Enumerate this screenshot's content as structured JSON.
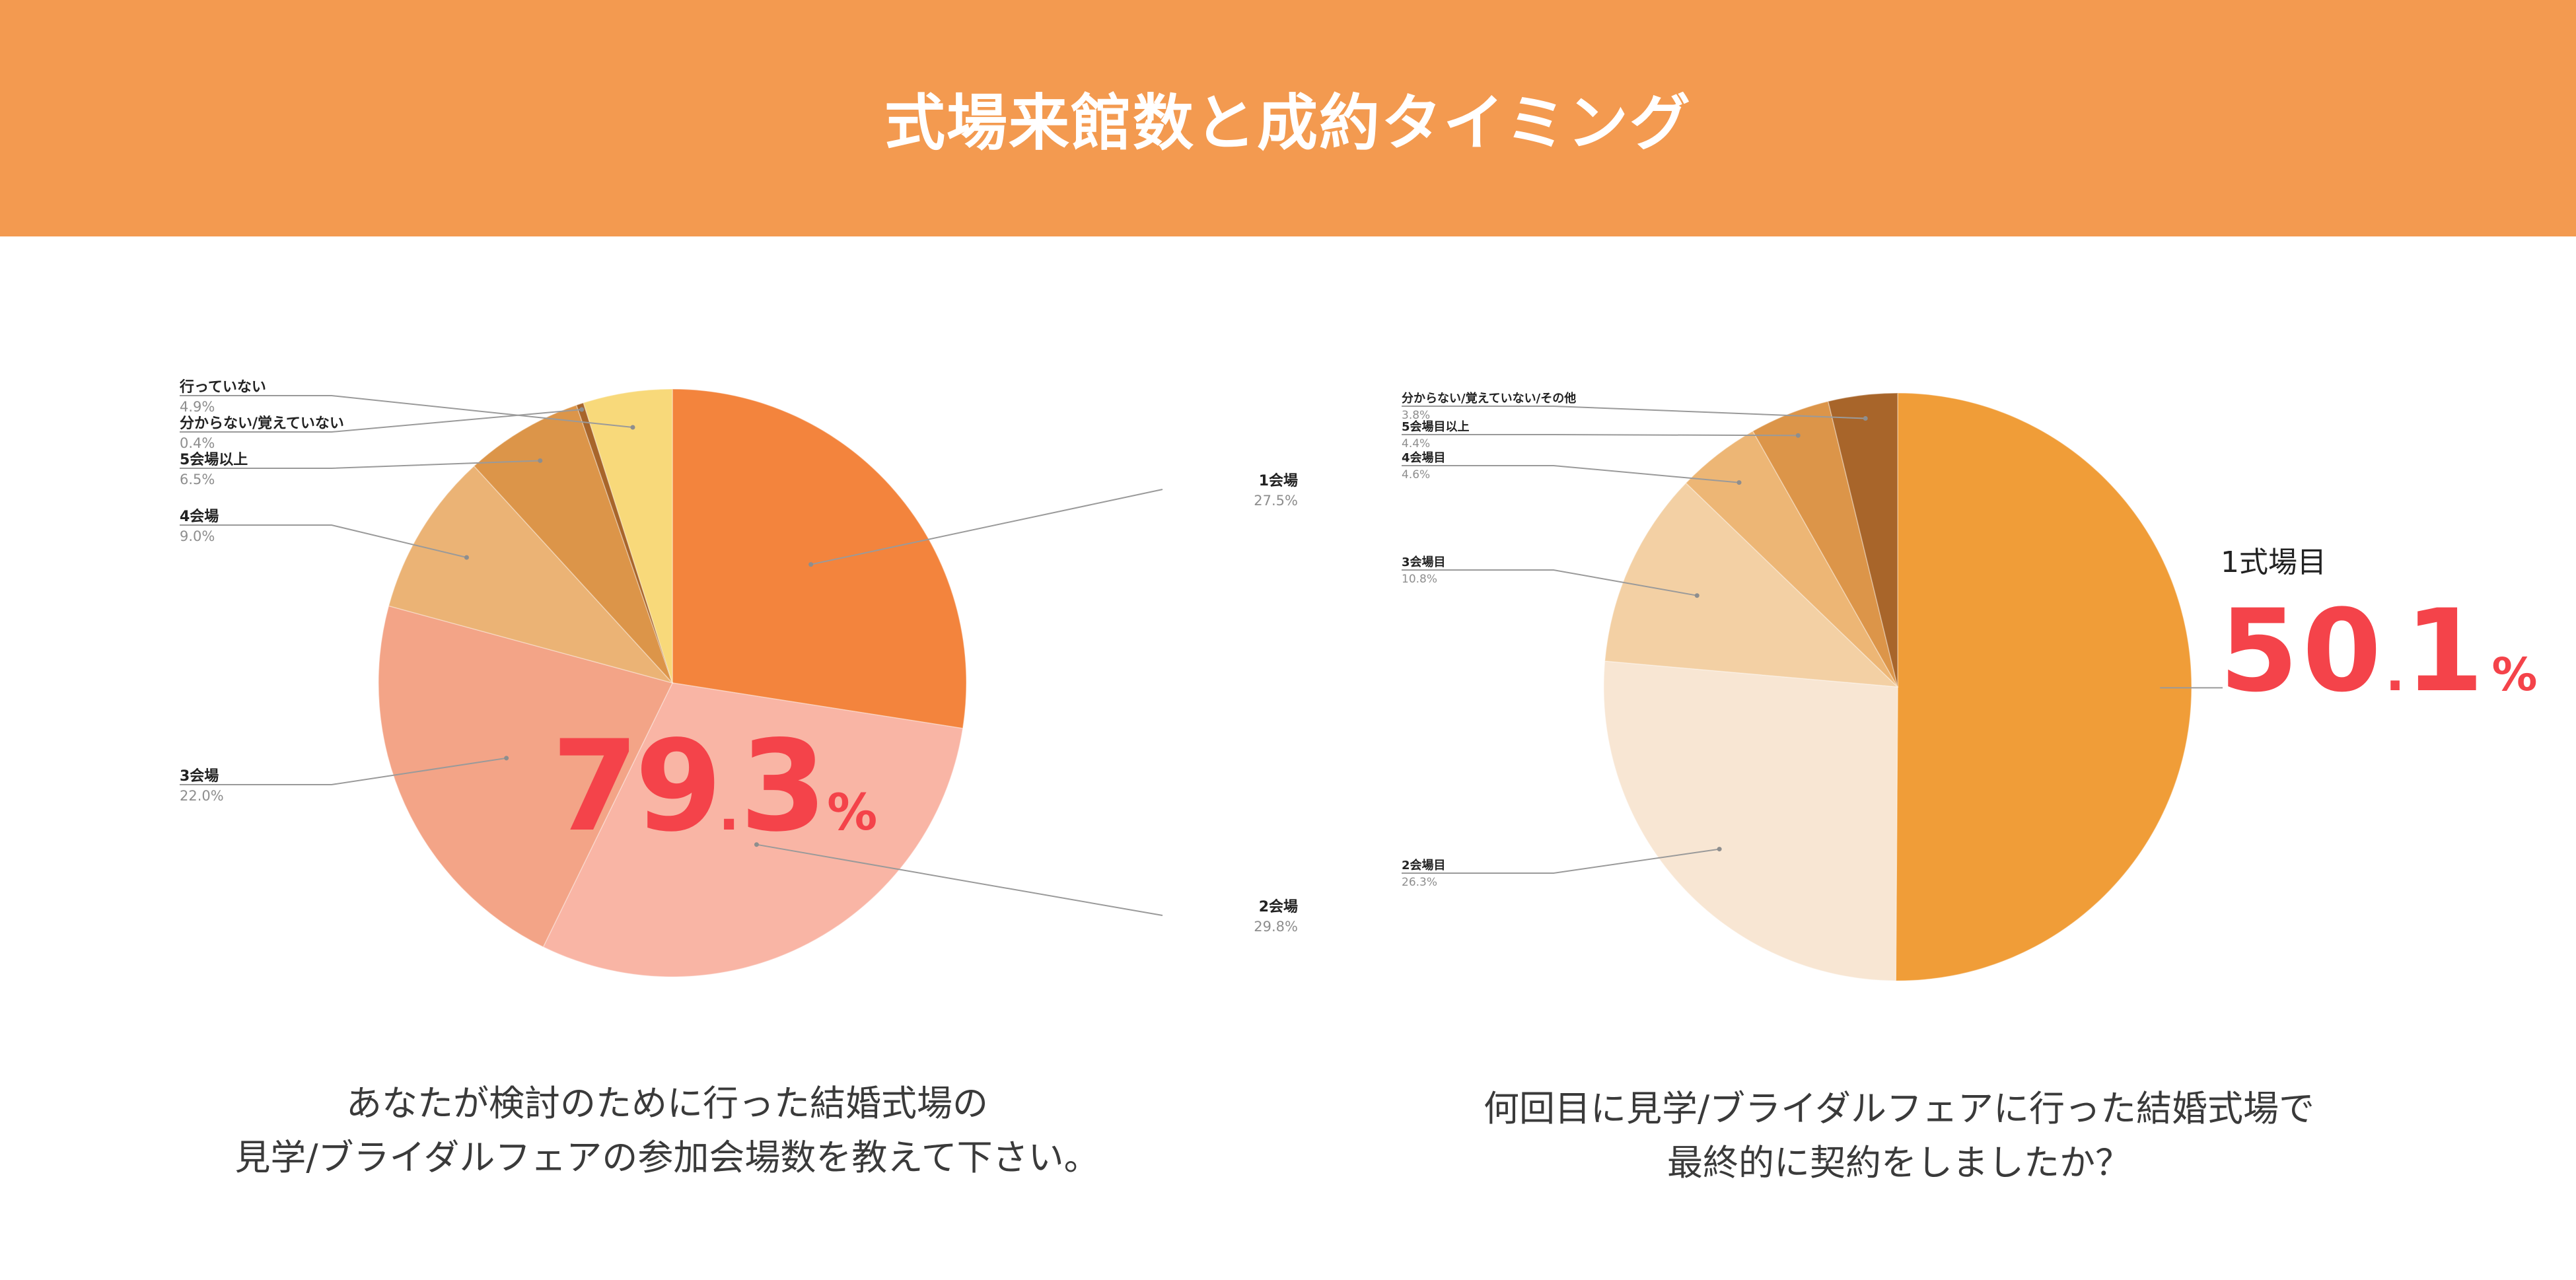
{
  "header": {
    "title": "式場来館数と成約タイミング"
  },
  "colors": {
    "header_bg": "#F39A50",
    "highlight": "#F4434A"
  },
  "left": {
    "big_number": {
      "int": "79",
      "dot": ".",
      "dec": "3",
      "unit": "%"
    },
    "question_lines": "あなたが検討のために行った結婚式場の\n見学/ブライダルフェアの参加会場数を教えて下さい。"
  },
  "right": {
    "highlight_label": "1式場目",
    "big_number": {
      "int": "50",
      "dot": ".",
      "dec": "1",
      "unit": "%"
    },
    "question_lines": "何回目に見学/ブライダルフェアに行った結婚式場で\n最終的に契約をしましたか？"
  },
  "chart_data": [
    {
      "type": "pie",
      "slices": [
        {
          "label": "1会場",
          "pct": "27.5%",
          "value": 27.5,
          "color": "#F3843D"
        },
        {
          "label": "2会場",
          "pct": "29.8%",
          "value": 29.8,
          "color": "#F9B5A5"
        },
        {
          "label": "3会場",
          "pct": "22.0%",
          "value": 22.0,
          "color": "#F3A487"
        },
        {
          "label": "4会場",
          "pct": "9.0%",
          "value": 9.0,
          "color": "#EBB375"
        },
        {
          "label": "5会場以上",
          "pct": "6.5%",
          "value": 6.5,
          "color": "#DC9549"
        },
        {
          "label": "分からない/覚えていない",
          "pct": "0.4%",
          "value": 0.4,
          "color": "#A8652A"
        },
        {
          "label": "行っていない",
          "pct": "4.9%",
          "value": 4.9,
          "color": "#F8D97A"
        }
      ]
    },
    {
      "type": "pie",
      "slices": [
        {
          "label": "1式場目",
          "pct": "",
          "value": 50.1,
          "color": "#F09D38"
        },
        {
          "label": "2会場目",
          "pct": "26.3%",
          "value": 26.3,
          "color": "#F8E6D3"
        },
        {
          "label": "3会場目",
          "pct": "10.8%",
          "value": 10.8,
          "color": "#F3D0A4"
        },
        {
          "label": "4会場目",
          "pct": "4.6%",
          "value": 4.6,
          "color": "#EDB675"
        },
        {
          "label": "5会場目以上",
          "pct": "4.4%",
          "value": 4.4,
          "color": "#DC9549"
        },
        {
          "label": "分からない/覚えていない/その他",
          "pct": "3.8%",
          "value": 3.8,
          "color": "#A8652A"
        }
      ]
    }
  ]
}
